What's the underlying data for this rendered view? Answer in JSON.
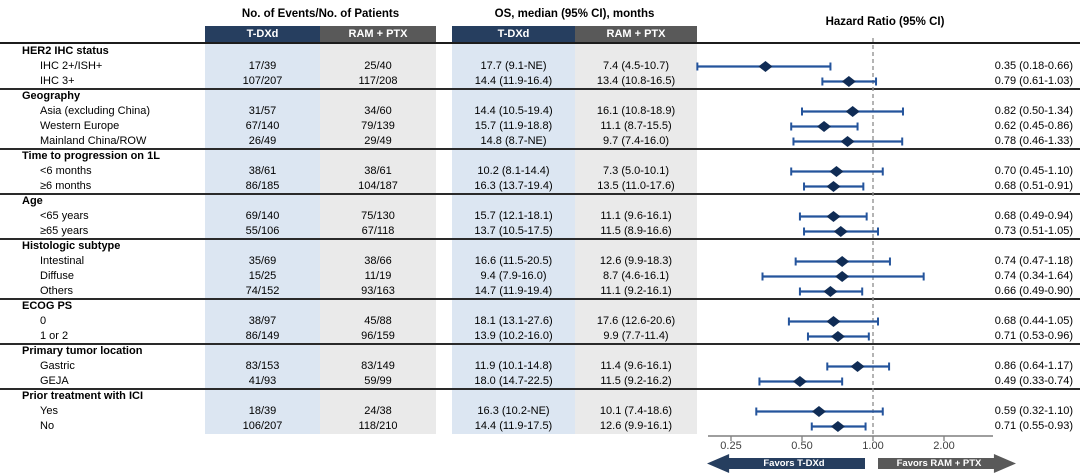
{
  "header": {
    "events": "No. of Events/No. of Patients",
    "os": "OS, median (95% CI), months",
    "hazard_ratio": "Hazard Ratio (95% CI)"
  },
  "columns": {
    "ev_tdxd": "T-DXd",
    "ev_ram": "RAM + PTX",
    "os_tdxd": "T-DXd",
    "os_ram": "RAM + PTX"
  },
  "colors": {
    "navy": "#263E5F",
    "gray": "#595959",
    "light_blue": "#DCE6F2",
    "light_gray": "#EAEAEA",
    "ci_line": "#24549C",
    "diamond": "#102C55",
    "axis": "#7F7F7F",
    "reference_line": "#8C8C8C"
  },
  "chart_data": {
    "type": "forest",
    "x_scale": "log",
    "axis": {
      "ticks": [
        0.25,
        0.5,
        1.0,
        2.0
      ],
      "tick_labels": [
        "0.25",
        "0.50",
        "1.00",
        "2.00"
      ],
      "reference_line": 1.0
    },
    "favors_left": "Favors T-DXd",
    "favors_right": "Favors RAM + PTX",
    "groups": [
      {
        "label": "HER2 IHC status",
        "rows": [
          {
            "label": "IHC 2+/ISH+",
            "ev_tdxd": "17/39",
            "ev_ram": "25/40",
            "os_tdxd": "17.7 (9.1-NE)",
            "os_ram": "7.4 (4.5-10.7)",
            "hr": 0.35,
            "lo": 0.18,
            "hi": 0.66,
            "hr_text": "0.35 (0.18-0.66)"
          },
          {
            "label": "IHC 3+",
            "ev_tdxd": "107/207",
            "ev_ram": "117/208",
            "os_tdxd": "14.4 (11.9-16.4)",
            "os_ram": "13.4 (10.8-16.5)",
            "hr": 0.79,
            "lo": 0.61,
            "hi": 1.03,
            "hr_text": "0.79 (0.61-1.03)"
          }
        ]
      },
      {
        "label": "Geography",
        "rows": [
          {
            "label": "Asia (excluding China)",
            "ev_tdxd": "31/57",
            "ev_ram": "34/60",
            "os_tdxd": "14.4 (10.5-19.4)",
            "os_ram": "16.1 (10.8-18.9)",
            "hr": 0.82,
            "lo": 0.5,
            "hi": 1.34,
            "hr_text": "0.82 (0.50-1.34)"
          },
          {
            "label": "Western Europe",
            "ev_tdxd": "67/140",
            "ev_ram": "79/139",
            "os_tdxd": "15.7 (11.9-18.8)",
            "os_ram": "11.1 (8.7-15.5)",
            "hr": 0.62,
            "lo": 0.45,
            "hi": 0.86,
            "hr_text": "0.62 (0.45-0.86)"
          },
          {
            "label": "Mainland China/ROW",
            "ev_tdxd": "26/49",
            "ev_ram": "29/49",
            "os_tdxd": "14.8 (8.7-NE)",
            "os_ram": "9.7 (7.4-16.0)",
            "hr": 0.78,
            "lo": 0.46,
            "hi": 1.33,
            "hr_text": "0.78 (0.46-1.33)"
          }
        ]
      },
      {
        "label": "Time to progression on 1L",
        "rows": [
          {
            "label": "<6 months",
            "ev_tdxd": "38/61",
            "ev_ram": "38/61",
            "os_tdxd": "10.2 (8.1-14.4)",
            "os_ram": "7.3 (5.0-10.1)",
            "hr": 0.7,
            "lo": 0.45,
            "hi": 1.1,
            "hr_text": "0.70 (0.45-1.10)"
          },
          {
            "label": "≥6 months",
            "ev_tdxd": "86/185",
            "ev_ram": "104/187",
            "os_tdxd": "16.3 (13.7-19.4)",
            "os_ram": "13.5 (11.0-17.6)",
            "hr": 0.68,
            "lo": 0.51,
            "hi": 0.91,
            "hr_text": "0.68 (0.51-0.91)"
          }
        ]
      },
      {
        "label": "Age",
        "rows": [
          {
            "label": "<65 years",
            "ev_tdxd": "69/140",
            "ev_ram": "75/130",
            "os_tdxd": "15.7 (12.1-18.1)",
            "os_ram": "11.1 (9.6-16.1)",
            "hr": 0.68,
            "lo": 0.49,
            "hi": 0.94,
            "hr_text": "0.68 (0.49-0.94)"
          },
          {
            "label": "≥65 years",
            "ev_tdxd": "55/106",
            "ev_ram": "67/118",
            "os_tdxd": "13.7 (10.5-17.5)",
            "os_ram": "11.5 (8.9-16.6)",
            "hr": 0.73,
            "lo": 0.51,
            "hi": 1.05,
            "hr_text": "0.73 (0.51-1.05)"
          }
        ]
      },
      {
        "label": "Histologic subtype",
        "rows": [
          {
            "label": "Intestinal",
            "ev_tdxd": "35/69",
            "ev_ram": "38/66",
            "os_tdxd": "16.6 (11.5-20.5)",
            "os_ram": "12.6 (9.9-18.3)",
            "hr": 0.74,
            "lo": 0.47,
            "hi": 1.18,
            "hr_text": "0.74 (0.47-1.18)"
          },
          {
            "label": "Diffuse",
            "ev_tdxd": "15/25",
            "ev_ram": "11/19",
            "os_tdxd": "9.4 (7.9-16.0)",
            "os_ram": "8.7 (4.6-16.1)",
            "hr": 0.74,
            "lo": 0.34,
            "hi": 1.64,
            "hr_text": "0.74 (0.34-1.64)"
          },
          {
            "label": "Others",
            "ev_tdxd": "74/152",
            "ev_ram": "93/163",
            "os_tdxd": "14.7 (11.9-19.4)",
            "os_ram": "11.1 (9.2-16.1)",
            "hr": 0.66,
            "lo": 0.49,
            "hi": 0.9,
            "hr_text": "0.66 (0.49-0.90)"
          }
        ]
      },
      {
        "label": "ECOG PS",
        "rows": [
          {
            "label": "0",
            "ev_tdxd": "38/97",
            "ev_ram": "45/88",
            "os_tdxd": "18.1 (13.1-27.6)",
            "os_ram": "17.6 (12.6-20.6)",
            "hr": 0.68,
            "lo": 0.44,
            "hi": 1.05,
            "hr_text": "0.68 (0.44-1.05)"
          },
          {
            "label": "1 or 2",
            "ev_tdxd": "86/149",
            "ev_ram": "96/159",
            "os_tdxd": "13.9 (10.2-16.0)",
            "os_ram": "9.9 (7.7-11.4)",
            "hr": 0.71,
            "lo": 0.53,
            "hi": 0.96,
            "hr_text": "0.71 (0.53-0.96)"
          }
        ]
      },
      {
        "label": "Primary tumor location",
        "rows": [
          {
            "label": "Gastric",
            "ev_tdxd": "83/153",
            "ev_ram": "83/149",
            "os_tdxd": "11.9 (10.1-14.8)",
            "os_ram": "11.4 (9.6-16.1)",
            "hr": 0.86,
            "lo": 0.64,
            "hi": 1.17,
            "hr_text": "0.86 (0.64-1.17)"
          },
          {
            "label": "GEJA",
            "ev_tdxd": "41/93",
            "ev_ram": "59/99",
            "os_tdxd": "18.0 (14.7-22.5)",
            "os_ram": "11.5 (9.2-16.2)",
            "hr": 0.49,
            "lo": 0.33,
            "hi": 0.74,
            "hr_text": "0.49 (0.33-0.74)"
          }
        ]
      },
      {
        "label": "Prior treatment with ICI",
        "rows": [
          {
            "label": "Yes",
            "ev_tdxd": "18/39",
            "ev_ram": "24/38",
            "os_tdxd": "16.3 (10.2-NE)",
            "os_ram": "10.1 (7.4-18.6)",
            "hr": 0.59,
            "lo": 0.32,
            "hi": 1.1,
            "hr_text": "0.59 (0.32-1.10)"
          },
          {
            "label": "No",
            "ev_tdxd": "106/207",
            "ev_ram": "118/210",
            "os_tdxd": "14.4 (11.9-17.5)",
            "os_ram": "12.6 (9.9-16.1)",
            "hr": 0.71,
            "lo": 0.55,
            "hi": 0.93,
            "hr_text": "0.71 (0.55-0.93)"
          }
        ]
      }
    ]
  }
}
